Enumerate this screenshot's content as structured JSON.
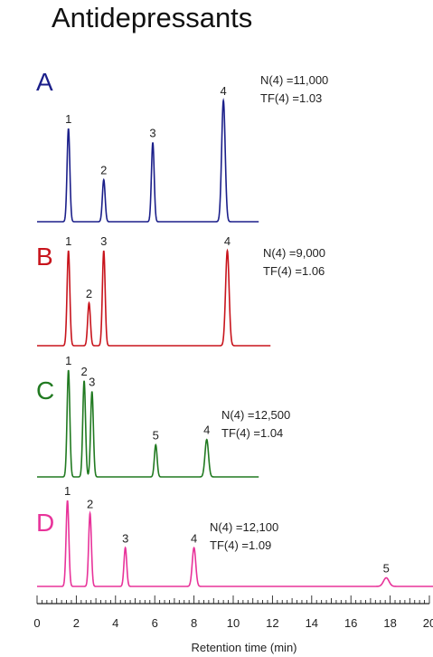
{
  "chart_data": {
    "type": "line",
    "title": "Antidepressants",
    "xlabel": "Retention time (min)",
    "xlim": [
      0,
      20
    ],
    "xticks": [
      "0",
      "2",
      "4",
      "6",
      "8",
      "10",
      "12",
      "14",
      "16",
      "18",
      "20"
    ],
    "panels": [
      {
        "letter": "A",
        "color": "#1b1f8a",
        "x_end": 11.3,
        "stats": [
          "N(4) =11,000",
          "TF(4) =1.03"
        ],
        "peaks": [
          {
            "label": "1",
            "x": 1.6,
            "height": 1.0
          },
          {
            "label": "2",
            "x": 3.4,
            "height": 0.45
          },
          {
            "label": "3",
            "x": 5.9,
            "height": 0.85
          },
          {
            "label": "4",
            "x": 9.5,
            "height": 1.3
          }
        ]
      },
      {
        "letter": "B",
        "color": "#c8141c",
        "x_end": 11.9,
        "stats": [
          "N(4) =9,000",
          "TF(4) =1.06"
        ],
        "peaks": [
          {
            "label": "1",
            "x": 1.6,
            "height": 1.0
          },
          {
            "label": "2",
            "x": 2.65,
            "height": 0.45
          },
          {
            "label": "3",
            "x": 3.4,
            "height": 1.0
          },
          {
            "label": "4",
            "x": 9.7,
            "height": 1.0
          }
        ]
      },
      {
        "letter": "C",
        "color": "#217a21",
        "x_end": 11.3,
        "stats": [
          "N(4) =12,500",
          "TF(4) =1.04"
        ],
        "peaks": [
          {
            "label": "1",
            "x": 1.6,
            "height": 1.0
          },
          {
            "label": "2",
            "x": 2.4,
            "height": 0.9
          },
          {
            "label": "3",
            "x": 2.8,
            "height": 0.8
          },
          {
            "label": "5",
            "x": 6.05,
            "height": 0.3
          },
          {
            "label": "4",
            "x": 8.65,
            "height": 0.35
          }
        ]
      },
      {
        "letter": "D",
        "color": "#e8339a",
        "x_end": 20.3,
        "stats": [
          "N(4) =12,100",
          "TF(4) =1.09"
        ],
        "peaks": [
          {
            "label": "1",
            "x": 1.55,
            "height": 1.0
          },
          {
            "label": "2",
            "x": 2.7,
            "height": 0.85
          },
          {
            "label": "3",
            "x": 4.5,
            "height": 0.45
          },
          {
            "label": "4",
            "x": 8.0,
            "height": 0.45
          },
          {
            "label": "5",
            "x": 17.8,
            "height": 0.1
          }
        ]
      }
    ]
  }
}
